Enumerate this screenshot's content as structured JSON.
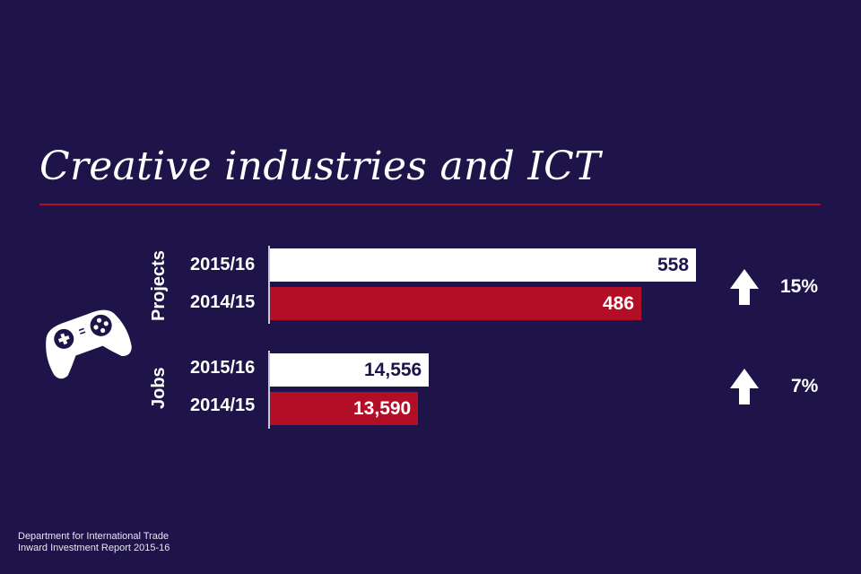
{
  "title": "Creative industries and ICT",
  "icon": "game-controller-icon",
  "colors": {
    "background": "#1f1449",
    "current_bar": "#ffffff",
    "previous_bar": "#b20e26",
    "rule": "#b20e26"
  },
  "chart_data": {
    "type": "bar",
    "orientation": "horizontal",
    "title": "Creative industries and ICT",
    "groups": [
      {
        "name": "Projects",
        "categories": [
          "2015/16",
          "2014/15"
        ],
        "values": [
          558,
          486
        ],
        "value_labels": [
          "558",
          "486"
        ],
        "change": {
          "direction": "up",
          "label": "15%"
        }
      },
      {
        "name": "Jobs",
        "categories": [
          "2015/16",
          "2014/15"
        ],
        "values": [
          14556,
          13590
        ],
        "value_labels": [
          "14,556",
          "13,590"
        ],
        "change": {
          "direction": "up",
          "label": "7%"
        }
      }
    ],
    "series_colors": {
      "2015/16": "#ffffff",
      "2014/15": "#b20e26"
    },
    "grid": false
  },
  "footer": {
    "line1": "Department for International Trade",
    "line2": "Inward Investment Report 2015-16"
  }
}
